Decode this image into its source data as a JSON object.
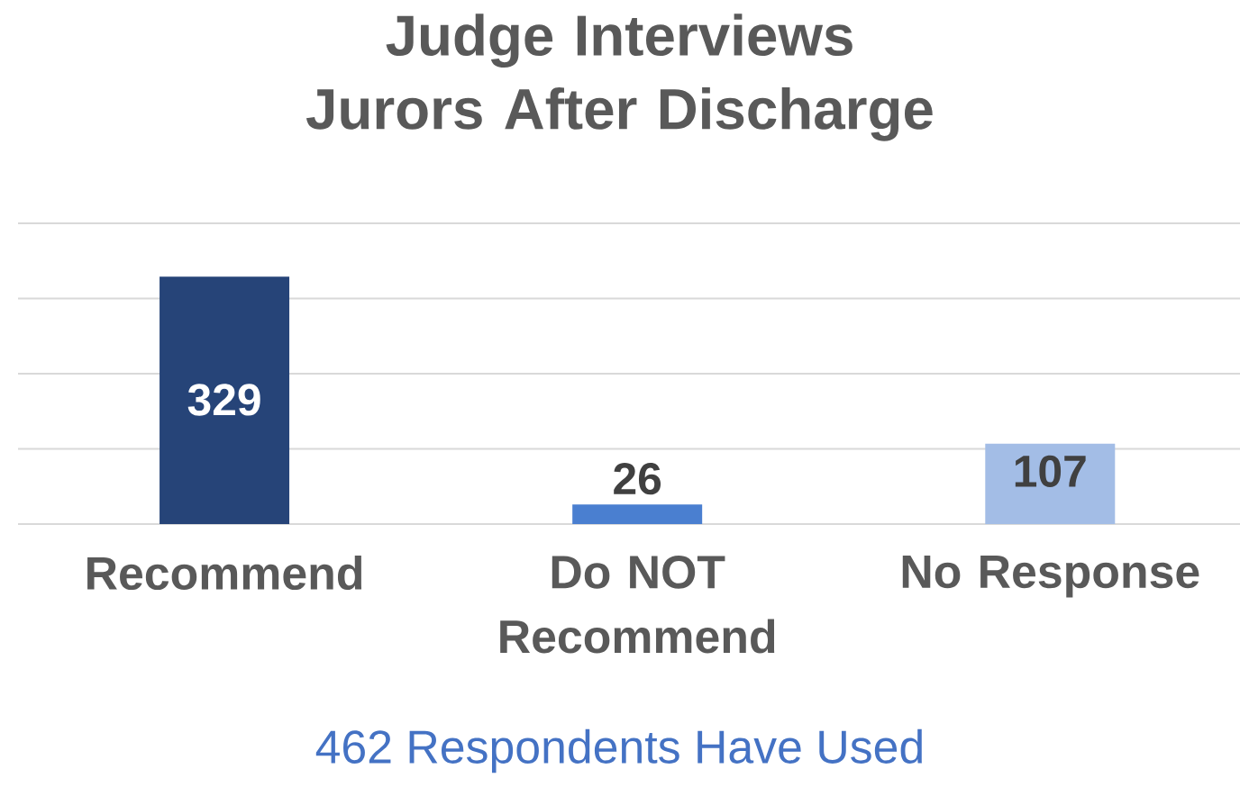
{
  "chart_data": {
    "type": "bar",
    "title": "Judge Interviews Jurors After Discharge",
    "categories": [
      "Recommend",
      "Do NOT Recommend",
      "No Response"
    ],
    "values": [
      329,
      26,
      107
    ],
    "colors": [
      "#264478",
      "#4a7fd0",
      "#a3bde6"
    ],
    "ylim": [
      0,
      400
    ],
    "yticks": [
      {
        "value": 0,
        "label": null
      },
      {
        "value": 100,
        "label": null
      },
      {
        "value": 200,
        "label": null
      },
      {
        "value": 300,
        "label": null
      },
      {
        "value": 400,
        "label": null
      }
    ],
    "tick_labels": "x",
    "grid": "y",
    "data_labels": true,
    "annotations": [
      "462 Respondents Have Used"
    ]
  }
}
